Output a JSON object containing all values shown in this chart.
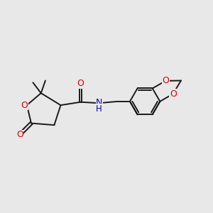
{
  "background_color": "#e8e8e8",
  "bond_color": "#1a1a1a",
  "oxygen_color": "#dd0000",
  "nitrogen_color": "#0000cc",
  "lw": 1.4,
  "fs": 8.5,
  "xlim": [
    0,
    10
  ],
  "ylim": [
    0,
    8
  ]
}
